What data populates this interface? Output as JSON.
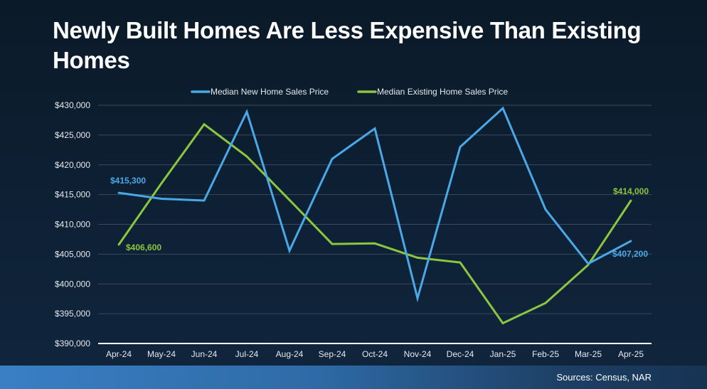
{
  "title": "Newly Built Homes Are Less Expensive Than Existing Homes",
  "footer": {
    "source": "Sources: Census, NAR"
  },
  "colors": {
    "new": "#4aa8e6",
    "existing": "#8cc63f",
    "grid": "#3a4a5a",
    "axis": "#ffffff",
    "text": "#e6e9ee"
  },
  "chart_data": {
    "type": "line",
    "title": "Newly Built Homes Are Less Expensive Than Existing Homes",
    "xlabel": "",
    "ylabel": "",
    "ylim": [
      390000,
      430000
    ],
    "yticks": [
      390000,
      395000,
      400000,
      405000,
      410000,
      415000,
      420000,
      425000,
      430000
    ],
    "ytick_labels": [
      "$390,000",
      "$395,000",
      "$400,000",
      "$405,000",
      "$410,000",
      "$415,000",
      "$420,000",
      "$425,000",
      "$430,000"
    ],
    "grid": true,
    "legend_position": "top-center",
    "categories": [
      "Apr-24",
      "May-24",
      "Jun-24",
      "Jul-24",
      "Aug-24",
      "Sep-24",
      "Oct-24",
      "Nov-24",
      "Dec-24",
      "Jan-25",
      "Feb-25",
      "Mar-25",
      "Apr-25"
    ],
    "series": [
      {
        "name": "Median New Home Sales Price",
        "color": "#4aa8e6",
        "values": [
          415300,
          414300,
          414000,
          428900,
          405600,
          421000,
          426100,
          397600,
          423000,
          429500,
          412500,
          403400,
          407200
        ],
        "labels": [
          {
            "index": 0,
            "text": "$415,300"
          },
          {
            "index": 12,
            "text": "$407,200"
          }
        ]
      },
      {
        "name": "Median Existing Home Sales Price",
        "color": "#8cc63f",
        "values": [
          406600,
          416900,
          426800,
          421400,
          414100,
          406700,
          406800,
          404400,
          403600,
          393400,
          396800,
          403200,
          414000
        ],
        "labels": [
          {
            "index": 0,
            "text": "$406,600"
          },
          {
            "index": 12,
            "text": "$414,000"
          }
        ]
      }
    ]
  }
}
